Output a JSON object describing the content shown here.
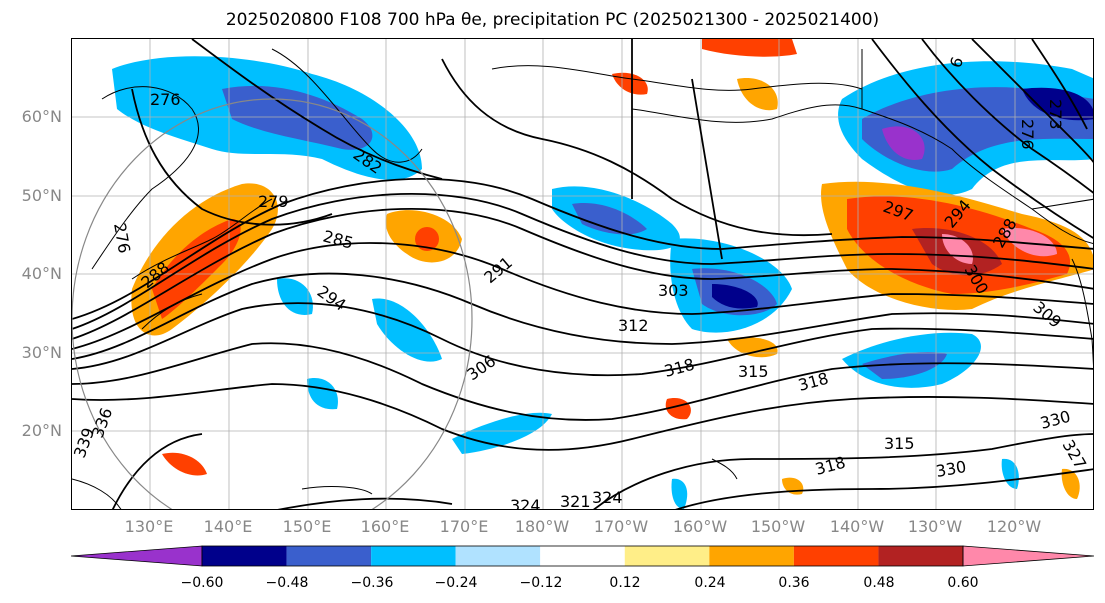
{
  "title": "2025020800 F108 700 hPa θe, precipitation PC (2025021300 - 2025021400)",
  "lat_labels": [
    "60°N",
    "50°N",
    "40°N",
    "30°N",
    "20°N"
  ],
  "lon_labels": [
    "130°E",
    "140°E",
    "150°E",
    "160°E",
    "170°E",
    "180°W",
    "170°W",
    "160°W",
    "150°W",
    "140°W",
    "130°W",
    "120°W"
  ],
  "contour_labels": [
    "276",
    "282",
    "276",
    "279",
    "285",
    "288",
    "291",
    "294",
    "303",
    "312",
    "306",
    "318",
    "315",
    "318",
    "324",
    "321",
    "324",
    "330",
    "315",
    "318",
    "330",
    "327",
    "336",
    "339",
    "297",
    "294",
    "288",
    "300",
    "309",
    "273",
    "276",
    "6"
  ],
  "colorbar": {
    "ticks": [
      "−0.60",
      "−0.48",
      "−0.36",
      "−0.24",
      "−0.12",
      "0.12",
      "0.24",
      "0.36",
      "0.48",
      "0.60"
    ],
    "colors": [
      "#9932cc",
      "#00008b",
      "#3a5fcd",
      "#00bfff",
      "#b0e2ff",
      "#ffffff",
      "#ffee88",
      "#ffa500",
      "#ff4000",
      "#b22222",
      "#ff88aa"
    ]
  },
  "colors": {
    "strong_negative": "#00008b",
    "negative": "#3a5fcd",
    "weak_negative": "#00bfff",
    "weak_positive": "#ffa500",
    "positive": "#ff4000",
    "strong_positive": "#ff88aa"
  }
}
